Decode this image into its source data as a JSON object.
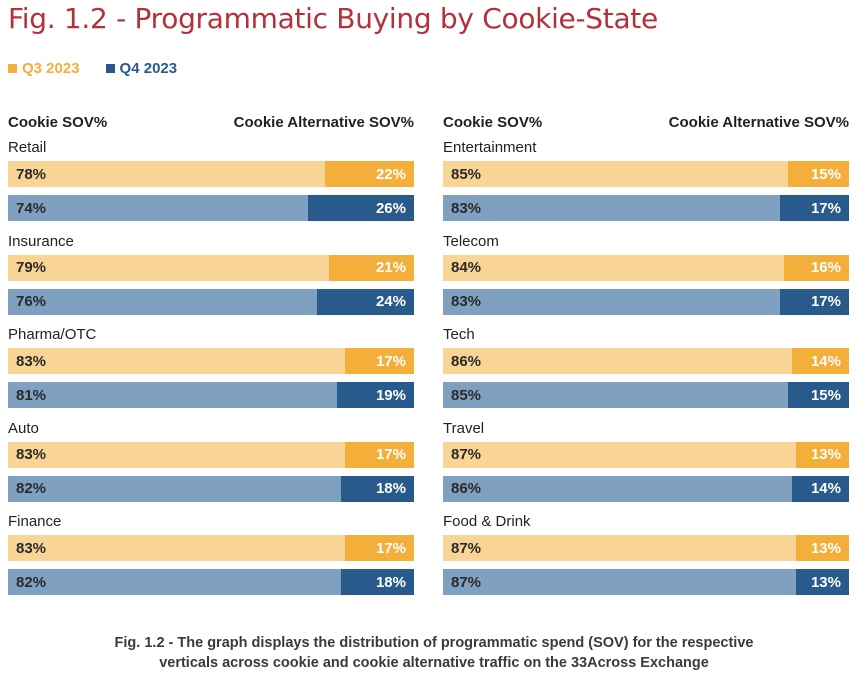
{
  "title": "Fig. 1.2 - Programmatic Buying by Cookie-State",
  "legend": [
    {
      "label": "Q3 2023",
      "color": "#f4ae3a"
    },
    {
      "label": "Q4 2023",
      "color": "#285a8c"
    }
  ],
  "column_headers": {
    "cookie": "Cookie SOV%",
    "alternative": "Cookie Alternative SOV%"
  },
  "colors": {
    "q3_cookie": "#f8d594",
    "q3_alt": "#f4ae3a",
    "q4_cookie": "#7fa0c0",
    "q4_alt": "#285a8c"
  },
  "caption": [
    "Fig. 1.2 - The graph displays the distribution of programmatic spend (SOV) for the respective",
    "verticals across cookie and cookie alternative traffic on the 33Across Exchange"
  ],
  "chart_data": {
    "type": "bar",
    "orientation": "horizontal",
    "stacked": true,
    "unit": "%",
    "title": "Fig. 1.2 - Programmatic Buying by Cookie-State",
    "legend": [
      "Q3 2023",
      "Q4 2023"
    ],
    "legend_placement": "top-left",
    "components": [
      "Cookie SOV%",
      "Cookie Alternative SOV%"
    ],
    "categories": [
      "Retail",
      "Insurance",
      "Pharma/OTC",
      "Auto",
      "Finance",
      "Entertainment",
      "Telecom",
      "Tech",
      "Travel",
      "Food & Drink"
    ],
    "series": [
      {
        "name": "Q3 2023",
        "cookie": [
          78,
          79,
          83,
          83,
          83,
          85,
          84,
          86,
          87,
          87
        ],
        "alternative": [
          22,
          21,
          17,
          17,
          17,
          15,
          16,
          14,
          13,
          13
        ]
      },
      {
        "name": "Q4 2023",
        "cookie": [
          74,
          76,
          81,
          82,
          82,
          83,
          83,
          85,
          86,
          87
        ],
        "alternative": [
          26,
          24,
          19,
          18,
          18,
          17,
          17,
          15,
          14,
          13
        ]
      }
    ]
  }
}
